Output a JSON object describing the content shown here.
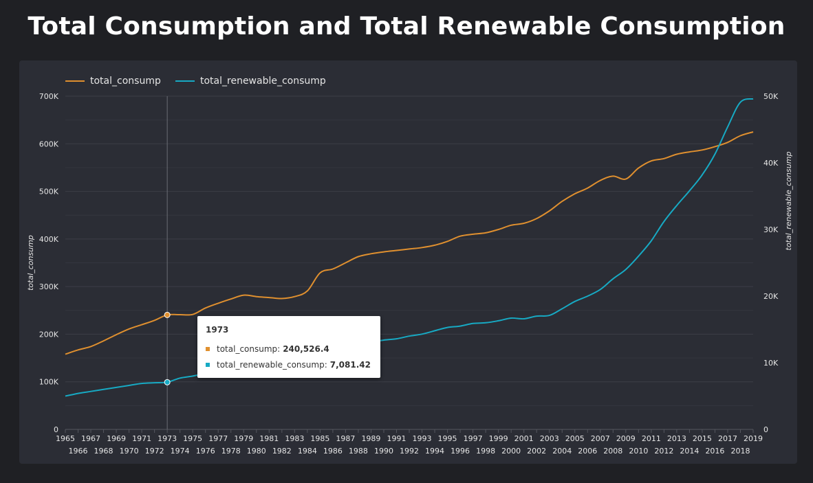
{
  "title": "Total Consumption and Total Renewable Consumption",
  "colors": {
    "total_consump": "#e0902f",
    "total_renewable_consump": "#17aac4",
    "background": "#1f2024",
    "panel": "#2b2d35"
  },
  "tooltip": {
    "year": "1973",
    "rows": [
      {
        "label": "total_consump:",
        "value": "240,526.4"
      },
      {
        "label": "total_renewable_consump:",
        "value": "7,081.42"
      }
    ]
  },
  "chart_data": {
    "type": "line",
    "x": [
      1965,
      1966,
      1967,
      1968,
      1969,
      1970,
      1971,
      1972,
      1973,
      1974,
      1975,
      1976,
      1977,
      1978,
      1979,
      1980,
      1981,
      1982,
      1983,
      1984,
      1985,
      1986,
      1987,
      1988,
      1989,
      1990,
      1991,
      1992,
      1993,
      1994,
      1995,
      1996,
      1997,
      1998,
      1999,
      2000,
      2001,
      2002,
      2003,
      2004,
      2005,
      2006,
      2007,
      2008,
      2009,
      2010,
      2011,
      2012,
      2013,
      2014,
      2015,
      2016,
      2017,
      2018,
      2019
    ],
    "series": [
      {
        "name": "total_consump",
        "axis": "left",
        "values": [
          158000,
          167000,
          174000,
          186000,
          199000,
          211000,
          220000,
          229000,
          240526,
          241000,
          241500,
          255000,
          265000,
          274000,
          282000,
          279000,
          277000,
          275000,
          279000,
          291000,
          329000,
          337000,
          350000,
          363000,
          369000,
          373000,
          376000,
          379000,
          382000,
          387000,
          395000,
          406000,
          410000,
          413000,
          420000,
          429000,
          433000,
          443000,
          459000,
          479000,
          495000,
          507000,
          523000,
          532000,
          526000,
          549000,
          564000,
          569000,
          578000,
          583000,
          587000,
          594000,
          603000,
          617000,
          625000
        ]
      },
      {
        "name": "total_renewable_consump",
        "axis": "right",
        "values": [
          5000,
          5400,
          5700,
          6000,
          6300,
          6600,
          6900,
          7000,
          7081,
          7700,
          8000,
          8400,
          8700,
          9100,
          9400,
          9900,
          10200,
          10600,
          11000,
          11500,
          12000,
          12400,
          12700,
          13000,
          13100,
          13400,
          13600,
          14000,
          14300,
          14800,
          15300,
          15500,
          15900,
          16000,
          16300,
          16700,
          16600,
          17000,
          17100,
          18100,
          19200,
          20000,
          21000,
          22600,
          24000,
          26000,
          28300,
          31200,
          33600,
          35800,
          38200,
          41300,
          45400,
          49100,
          49600
        ]
      }
    ],
    "xlabel": "",
    "ylabel": "total_consump",
    "y2label": "total_renewable_consump",
    "ylim": [
      0,
      700000
    ],
    "y2lim": [
      0,
      50000
    ],
    "y_ticks": [
      "0",
      "100K",
      "200K",
      "300K",
      "400K",
      "500K",
      "600K",
      "700K"
    ],
    "y2_ticks": [
      "0",
      "10K",
      "20K",
      "30K",
      "40K",
      "50K"
    ],
    "grid": true,
    "legend": "top-left",
    "highlight_x": 1973
  }
}
